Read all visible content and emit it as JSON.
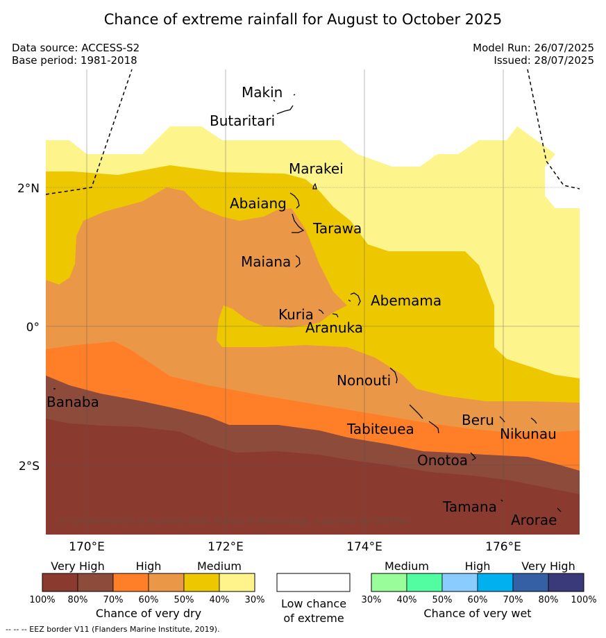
{
  "title": "Chance of extreme rainfall for August to October 2025",
  "header": {
    "data_source": "Data source: ACCESS-S2",
    "base_period": "Base period: 1981-2018",
    "model_run": "Model Run: 26/07/2025",
    "issued": "Issued: 28/07/2025"
  },
  "map": {
    "lat_labels": [
      "2°N",
      "0°",
      "2°S"
    ],
    "lon_labels": [
      "170°E",
      "172°E",
      "174°E",
      "176°E"
    ],
    "islands": [
      "Makin",
      "Butaritari",
      "Marakei",
      "Abaiang",
      "Tarawa",
      "Maiana",
      "Abemama",
      "Kuria",
      "Aranuka",
      "Nonouti",
      "Banaba",
      "Tabiteuea",
      "Beru",
      "Nikunau",
      "Onotoa",
      "Tamana",
      "Arorae"
    ],
    "copyright": "© Commonwealth of Australia 2025, Bureau of Meteorology, supported by COSPPac"
  },
  "legend": {
    "dry": {
      "categories": [
        "Very High",
        "High",
        "Medium"
      ],
      "ticks": [
        "100%",
        "80%",
        "70%",
        "60%",
        "50%",
        "40%",
        "30%"
      ],
      "colors": [
        "#8b3a30",
        "#8c4b3b",
        "#fe7f27",
        "#ea9848",
        "#edc800",
        "#fef48b"
      ],
      "label": "Chance of very dry"
    },
    "low": {
      "label_line1": "Low chance",
      "label_line2": "of extreme"
    },
    "wet": {
      "categories": [
        "Medium",
        "High",
        "Very High"
      ],
      "ticks": [
        "30%",
        "40%",
        "50%",
        "60%",
        "70%",
        "80%",
        "100%"
      ],
      "colors": [
        "#99fd99",
        "#52fda1",
        "#8bccfe",
        "#00b0ef",
        "#3560a5",
        "#3a3a7b"
      ],
      "label": "Chance of very wet"
    }
  },
  "footer": {
    "eez": "--  --  -- EEZ border V11 (Flanders Marine Institute, 2019)."
  }
}
